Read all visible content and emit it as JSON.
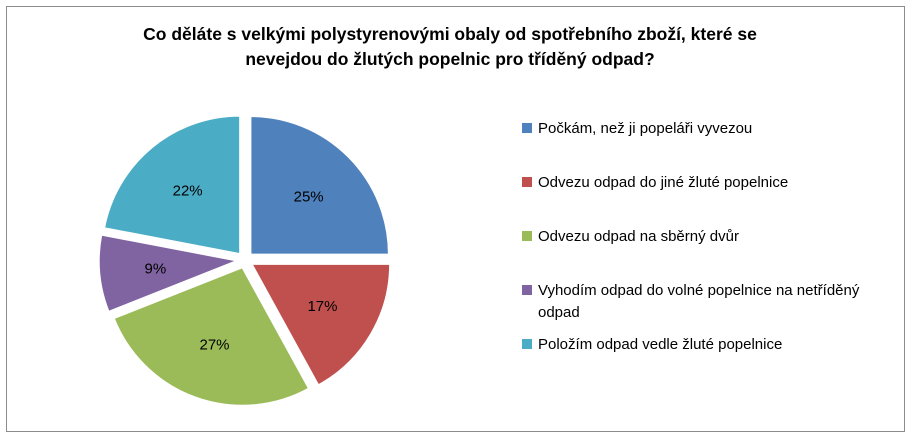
{
  "chart_data": {
    "type": "pie",
    "title_lines": [
      "Co děláte s velkými polystyrenovými obaly od spotřebního zboží, které se",
      "nevejdou do žlutých popelnic pro tříděný odpad?"
    ],
    "legend_position": "right",
    "exploded": true,
    "start_angle": "12 o'clock, clockwise",
    "slices": [
      {
        "label": "Počkám, než ji popeláři vyvezou",
        "value": 25,
        "display": "25%",
        "color": "#4f81bd"
      },
      {
        "label": "Odvezu odpad do jiné žluté popelnice",
        "value": 17,
        "display": "17%",
        "color": "#c0504d"
      },
      {
        "label": "Odvezu odpad na sběrný dvůr",
        "value": 27,
        "display": "27%",
        "color": "#9bbb59"
      },
      {
        "label": "Vyhodím odpad do volné popelnice na nетříděný odpad",
        "value": 9,
        "display": "9%",
        "color": "#8064a2"
      },
      {
        "label": "Položím odpad vedle žluté popelnice",
        "value": 22,
        "display": "22%",
        "color": "#4bacc6"
      }
    ]
  }
}
